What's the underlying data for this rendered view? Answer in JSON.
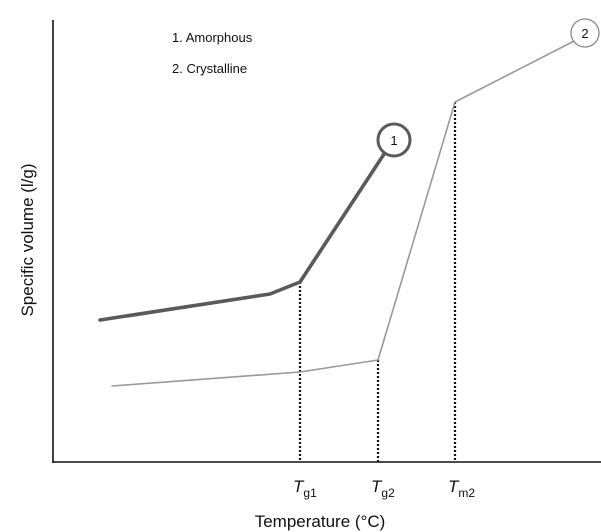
{
  "chart_data": {
    "type": "line",
    "xlabel": "Temperature (°C)",
    "ylabel": "Specific volume (l/g)",
    "legend": [
      "1. Amorphous",
      "2. Crystalline"
    ],
    "ticks": [
      {
        "key": "tg1",
        "main": "T",
        "sub": "g1"
      },
      {
        "key": "tg2",
        "main": "T",
        "sub": "g2"
      },
      {
        "key": "tm2",
        "main": "T",
        "sub": "m2"
      }
    ],
    "series": [
      {
        "marker": "1",
        "color": "#5a5a5a",
        "points": [
          [
            100,
            320
          ],
          [
            270,
            294
          ],
          [
            300,
            282
          ],
          [
            390,
            145
          ]
        ]
      },
      {
        "marker": "2",
        "color": "#999999",
        "points": [
          [
            112,
            386
          ],
          [
            300,
            372
          ],
          [
            378,
            360
          ],
          [
            455,
            102
          ],
          [
            580,
            38
          ]
        ]
      }
    ],
    "transitions": [
      {
        "key": "tg1",
        "x": 300,
        "y": 282
      },
      {
        "key": "tg2",
        "x": 378,
        "y": 360
      },
      {
        "key": "tm2",
        "x": 455,
        "y": 102
      }
    ]
  }
}
